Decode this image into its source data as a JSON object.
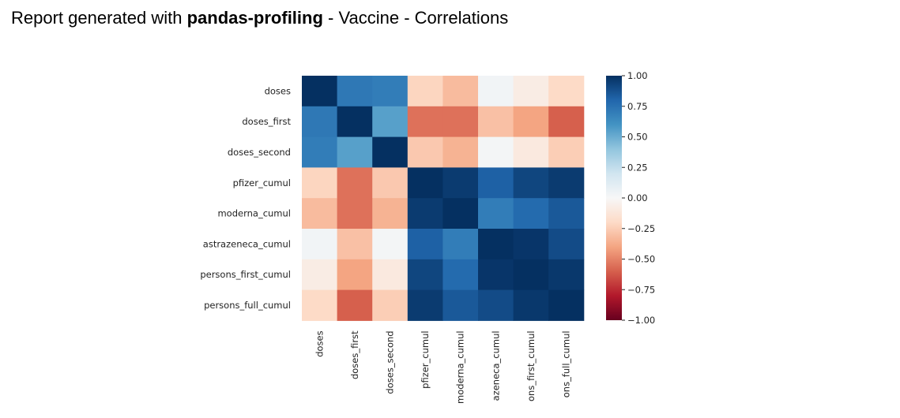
{
  "title": {
    "prefix": "Report generated with ",
    "bold": "pandas-profiling",
    "suffix": " - Vaccine - Correlations"
  },
  "chart_data": {
    "type": "heatmap",
    "variables": [
      "doses",
      "doses_first",
      "doses_second",
      "pfizer_cumul",
      "moderna_cumul",
      "astrazeneca_cumul",
      "persons_first_cumul",
      "persons_full_cumul"
    ],
    "x_tick_labels": [
      "doses",
      "doses_first",
      "doses_second",
      "pfizer_cumul",
      "moderna_cumul",
      "azeneca_cumul",
      "ons_first_cumul",
      "ons_full_cumul"
    ],
    "values": [
      [
        1.0,
        0.72,
        0.7,
        -0.22,
        -0.32,
        0.03,
        -0.08,
        -0.2
      ],
      [
        0.72,
        1.0,
        0.55,
        -0.55,
        -0.55,
        -0.3,
        -0.4,
        -0.6
      ],
      [
        0.7,
        0.55,
        1.0,
        -0.27,
        -0.35,
        0.02,
        -0.1,
        -0.25
      ],
      [
        -0.22,
        -0.55,
        -0.27,
        1.0,
        0.96,
        0.82,
        0.92,
        0.96
      ],
      [
        -0.32,
        -0.55,
        -0.35,
        0.96,
        1.0,
        0.7,
        0.78,
        0.85
      ],
      [
        0.03,
        -0.3,
        0.02,
        0.82,
        0.7,
        1.0,
        0.98,
        0.9
      ],
      [
        -0.08,
        -0.4,
        -0.1,
        0.92,
        0.78,
        0.98,
        1.0,
        0.97
      ],
      [
        -0.2,
        -0.6,
        -0.25,
        0.96,
        0.85,
        0.9,
        0.97,
        1.0
      ]
    ],
    "colorbar": {
      "min": -1.0,
      "max": 1.0,
      "ticks": [
        "1.00",
        "0.75",
        "0.50",
        "0.25",
        "0.00",
        "−0.25",
        "−0.50",
        "−0.75",
        "−1.00"
      ],
      "colormap": "RdBu"
    },
    "grid": false,
    "legend": "right"
  }
}
